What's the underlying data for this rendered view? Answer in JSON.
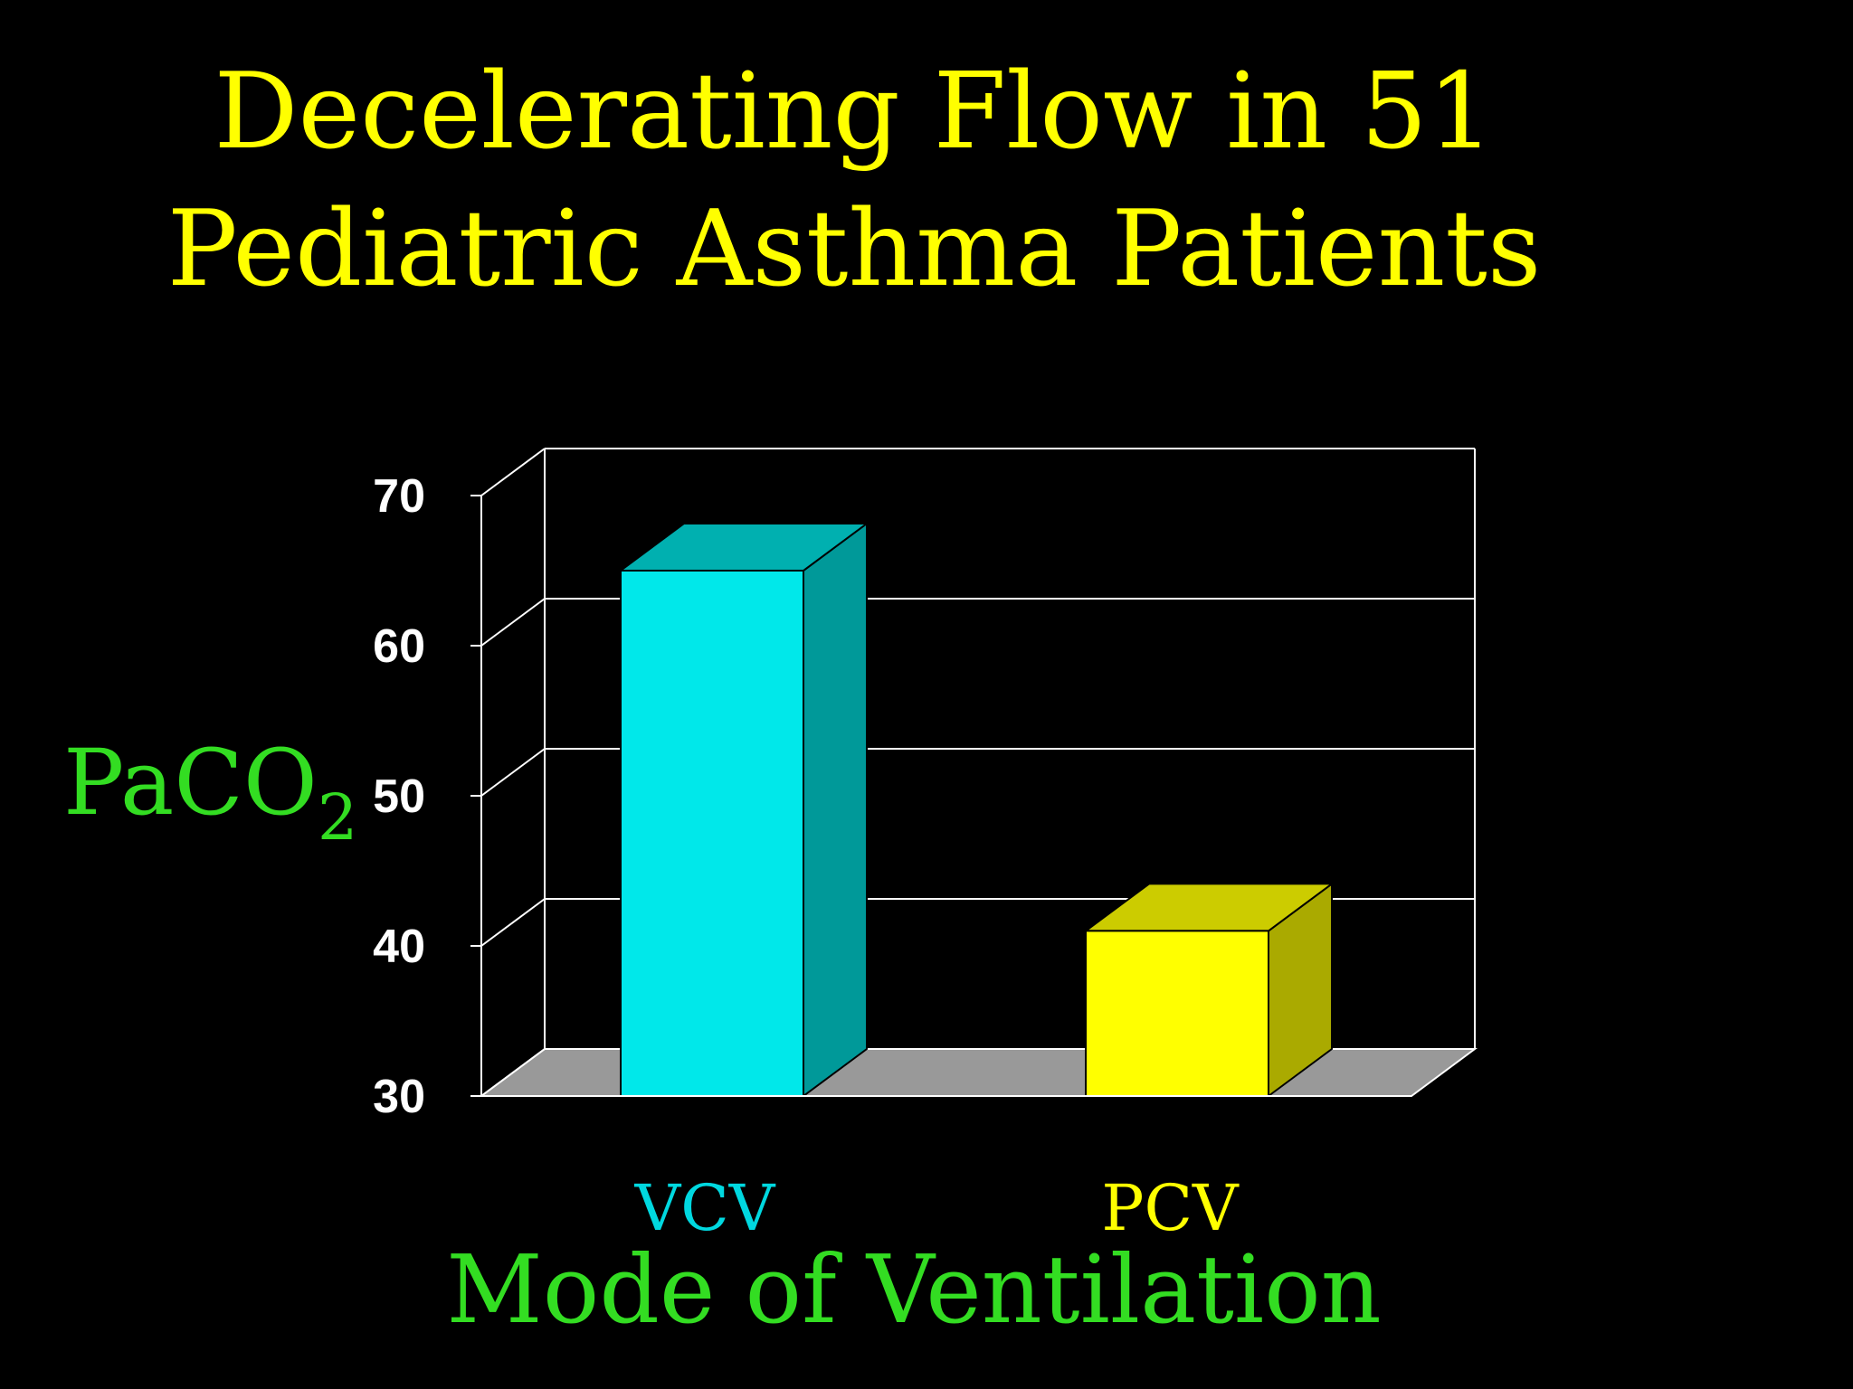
{
  "colors": {
    "background": "#000000",
    "title": "#FFFF00",
    "axis_label": "#33DD22",
    "tick_label": "#FFFFFF",
    "grid": "#FFFFFF",
    "floor": "#999999"
  },
  "slide": {
    "title_line1": "Decelerating Flow in 51",
    "title_line2": "Pediatric Asthma Patients"
  },
  "chart_data": {
    "type": "bar",
    "style": "3d",
    "title": "",
    "xlabel": "Mode of Ventilation",
    "ylabel": "PaCO",
    "ylabel_subscript": "2",
    "ylim": [
      30,
      70
    ],
    "yticks": [
      "70",
      "60",
      "50",
      "40",
      "30"
    ],
    "grid": true,
    "categories": [
      "VCV",
      "PCV"
    ],
    "values": [
      65,
      41
    ],
    "bar_colors": [
      {
        "front": "#00E8EA",
        "side": "#009999",
        "top": "#00B0B0",
        "label": "#00D8E0"
      },
      {
        "front": "#FFFF00",
        "side": "#AAAA00",
        "top": "#CCCC00",
        "label": "#FFFF00"
      }
    ]
  }
}
